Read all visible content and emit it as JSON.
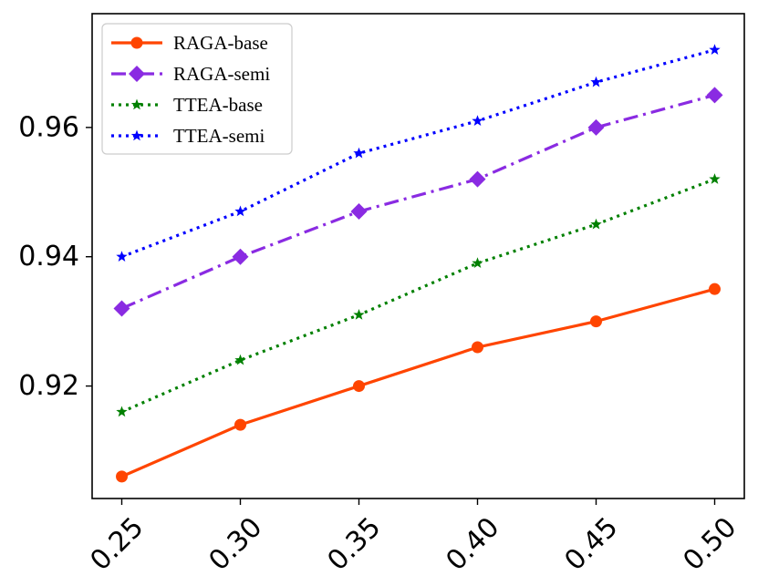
{
  "chart_data": {
    "type": "line",
    "title": "",
    "xlabel": "",
    "ylabel": "",
    "x": [
      0.25,
      0.3,
      0.35,
      0.4,
      0.45,
      0.5
    ],
    "x_tick_labels": [
      "0.25",
      "0.30",
      "0.35",
      "0.40",
      "0.45",
      "0.50"
    ],
    "y_ticks": [
      0.92,
      0.94,
      0.96
    ],
    "y_tick_labels": [
      "0.92",
      "0.94",
      "0.96"
    ],
    "xlim": [
      0.2375,
      0.5125
    ],
    "ylim": [
      0.9026,
      0.9776
    ],
    "grid": false,
    "legend_position": "top-left",
    "series": [
      {
        "name": "RAGA-base",
        "color": "#ff4500",
        "line_style": "solid",
        "marker": "circle",
        "values": [
          0.906,
          0.914,
          0.92,
          0.926,
          0.93,
          0.935
        ]
      },
      {
        "name": "RAGA-semi",
        "color": "#8a2be2",
        "line_style": "dashdot",
        "marker": "diamond",
        "values": [
          0.932,
          0.94,
          0.947,
          0.952,
          0.96,
          0.965
        ]
      },
      {
        "name": "TTEA-base",
        "color": "#008000",
        "line_style": "dotted",
        "marker": "star",
        "values": [
          0.916,
          0.924,
          0.931,
          0.939,
          0.945,
          0.952
        ]
      },
      {
        "name": "TTEA-semi",
        "color": "#0000ff",
        "line_style": "dotted",
        "marker": "star",
        "values": [
          0.94,
          0.947,
          0.956,
          0.961,
          0.967,
          0.972
        ]
      }
    ]
  }
}
